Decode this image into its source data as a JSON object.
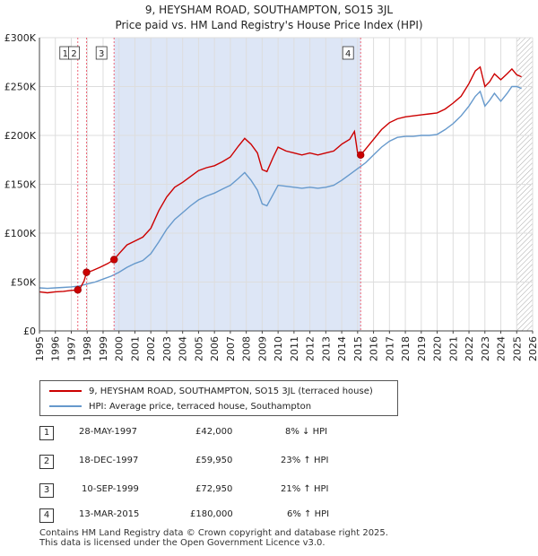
{
  "title_line1": "9, HEYSHAM ROAD, SOUTHAMPTON, SO15 3JL",
  "title_line2": "Price paid vs. HM Land Registry's House Price Index (HPI)",
  "colors": {
    "property": "#cc0000",
    "hpi": "#6699cc",
    "shade": "#dde6f6",
    "marker_line": "#ee6677"
  },
  "chart_data": {
    "type": "line",
    "xlim": [
      1995,
      2026
    ],
    "ylim": [
      0,
      300000
    ],
    "x_ticks": [
      "1995",
      "1996",
      "1997",
      "1998",
      "1999",
      "2000",
      "2001",
      "2002",
      "2003",
      "2004",
      "2005",
      "2006",
      "2007",
      "2008",
      "2009",
      "2010",
      "2011",
      "2012",
      "2013",
      "2014",
      "2015",
      "2016",
      "2017",
      "2018",
      "2019",
      "2020",
      "2021",
      "2022",
      "2023",
      "2024",
      "2025",
      "2026"
    ],
    "y_ticks": [
      {
        "value": 0,
        "label": "£0"
      },
      {
        "value": 50000,
        "label": "£50K"
      },
      {
        "value": 100000,
        "label": "£100K"
      },
      {
        "value": 150000,
        "label": "£150K"
      },
      {
        "value": 200000,
        "label": "£200K"
      },
      {
        "value": 250000,
        "label": "£250K"
      },
      {
        "value": 300000,
        "label": "£300K"
      }
    ],
    "shaded_range": [
      1999.7,
      2015.2
    ],
    "hatched_from": 2025.0,
    "series": [
      {
        "name": "9, HEYSHAM ROAD, SOUTHAMPTON, SO15 3JL (terraced house)",
        "color": "#cc0000",
        "x": [
          1995.0,
          1995.5,
          1996.0,
          1996.5,
          1997.0,
          1997.4,
          1997.5,
          1997.8,
          1997.96,
          1998.3,
          1998.8,
          1999.3,
          1999.69,
          2000.0,
          2000.5,
          2001.0,
          2001.5,
          2002.0,
          2002.5,
          2003.0,
          2003.5,
          2004.0,
          2004.5,
          2005.0,
          2005.5,
          2006.0,
          2006.5,
          2007.0,
          2007.5,
          2007.9,
          2008.3,
          2008.7,
          2009.0,
          2009.3,
          2009.7,
          2010.0,
          2010.5,
          2011.0,
          2011.5,
          2012.0,
          2012.5,
          2013.0,
          2013.5,
          2014.0,
          2014.5,
          2014.8,
          2015.0,
          2015.19,
          2015.5,
          2016.0,
          2016.5,
          2017.0,
          2017.5,
          2018.0,
          2018.5,
          2019.0,
          2019.5,
          2020.0,
          2020.5,
          2021.0,
          2021.5,
          2022.0,
          2022.4,
          2022.7,
          2023.0,
          2023.3,
          2023.6,
          2024.0,
          2024.4,
          2024.7,
          2025.0,
          2025.3
        ],
        "y": [
          40000,
          39000,
          40000,
          40500,
          41500,
          41800,
          42000,
          51000,
          59950,
          61500,
          65000,
          69000,
          72950,
          79000,
          88000,
          92000,
          96000,
          105000,
          123000,
          137000,
          147000,
          152000,
          158000,
          164000,
          167000,
          169000,
          173000,
          178000,
          189000,
          197000,
          191000,
          182000,
          165000,
          163000,
          178000,
          188000,
          184000,
          182000,
          180000,
          182000,
          180000,
          182000,
          184000,
          191000,
          196000,
          204000,
          182000,
          180000,
          186000,
          196000,
          206000,
          213000,
          217000,
          219000,
          220000,
          221000,
          222000,
          223000,
          227000,
          233000,
          240000,
          253000,
          266000,
          270000,
          250000,
          255000,
          263000,
          257000,
          263000,
          268000,
          262000,
          260000
        ]
      },
      {
        "name": "HPI: Average price, terraced house, Southampton",
        "color": "#6699cc",
        "x": [
          1995.0,
          1995.5,
          1996.0,
          1996.5,
          1997.0,
          1997.5,
          1998.0,
          1998.5,
          1999.0,
          1999.5,
          2000.0,
          2000.5,
          2001.0,
          2001.5,
          2002.0,
          2002.5,
          2003.0,
          2003.5,
          2004.0,
          2004.5,
          2005.0,
          2005.5,
          2006.0,
          2006.5,
          2007.0,
          2007.5,
          2007.9,
          2008.3,
          2008.7,
          2009.0,
          2009.3,
          2009.7,
          2010.0,
          2010.5,
          2011.0,
          2011.5,
          2012.0,
          2012.5,
          2013.0,
          2013.5,
          2014.0,
          2014.5,
          2015.0,
          2015.5,
          2016.0,
          2016.5,
          2017.0,
          2017.5,
          2018.0,
          2018.5,
          2019.0,
          2019.5,
          2020.0,
          2020.5,
          2021.0,
          2021.5,
          2022.0,
          2022.4,
          2022.7,
          2023.0,
          2023.3,
          2023.6,
          2024.0,
          2024.4,
          2024.7,
          2025.0,
          2025.3
        ],
        "y": [
          44000,
          43500,
          44000,
          44500,
          45000,
          46000,
          48000,
          50000,
          53000,
          56000,
          60000,
          65000,
          69000,
          72000,
          79000,
          91000,
          104000,
          114000,
          121000,
          128000,
          134000,
          138000,
          141000,
          145000,
          149000,
          156000,
          162000,
          154000,
          144000,
          130000,
          128000,
          140000,
          149000,
          148000,
          147000,
          146000,
          147000,
          146000,
          147000,
          149000,
          154000,
          160000,
          166000,
          172000,
          180000,
          188000,
          194000,
          198000,
          199000,
          199000,
          200000,
          200000,
          201000,
          206000,
          212000,
          220000,
          230000,
          240000,
          245000,
          230000,
          236000,
          243000,
          235000,
          243000,
          250000,
          250000,
          248000
        ]
      }
    ],
    "transactions": [
      {
        "id": "1",
        "date": "28-MAY-1997",
        "x": 1997.41,
        "price": 42000,
        "price_label": "£42,000",
        "hpi_change": "8% ↓ HPI"
      },
      {
        "id": "2",
        "date": "18-DEC-1997",
        "x": 1997.96,
        "price": 59950,
        "price_label": "£59,950",
        "hpi_change": "23% ↑ HPI"
      },
      {
        "id": "3",
        "date": "10-SEP-1999",
        "x": 1999.69,
        "price": 72950,
        "price_label": "£72,950",
        "hpi_change": "21% ↑ HPI"
      },
      {
        "id": "4",
        "date": "13-MAR-2015",
        "x": 2015.19,
        "price": 180000,
        "price_label": "£180,000",
        "hpi_change": "6% ↑ HPI"
      }
    ]
  },
  "legend": {
    "property": "9, HEYSHAM ROAD, SOUTHAMPTON, SO15 3JL (terraced house)",
    "hpi": "HPI: Average price, terraced house, Southampton"
  },
  "footer": {
    "line1": "Contains HM Land Registry data © Crown copyright and database right 2025.",
    "line2": "This data is licensed under the Open Government Licence v3.0."
  }
}
